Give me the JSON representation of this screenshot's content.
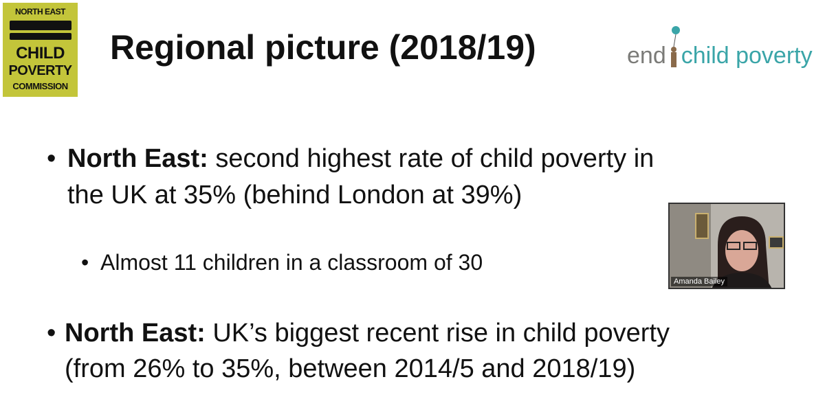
{
  "logo_left": {
    "lines": [
      "NORTH EAST",
      "CHILD",
      "POVERTY",
      "COMMISSION"
    ]
  },
  "title": "Regional picture (2018/19)",
  "logo_right": {
    "first": "end",
    "second": "child poverty"
  },
  "bullets": [
    {
      "lead": "North East:",
      "line1": "second highest rate of child poverty in",
      "line2": "the UK at 35% (behind London at 39%)"
    },
    {
      "text": "Almost 11 children in a classroom of 30"
    },
    {
      "lead": "North East:",
      "line1": "UK’s biggest recent rise in child poverty",
      "line2": "(from 26% to 35%, between 2014/5 and 2018/19)"
    }
  ],
  "video": {
    "name": "Amanda Bailey"
  }
}
